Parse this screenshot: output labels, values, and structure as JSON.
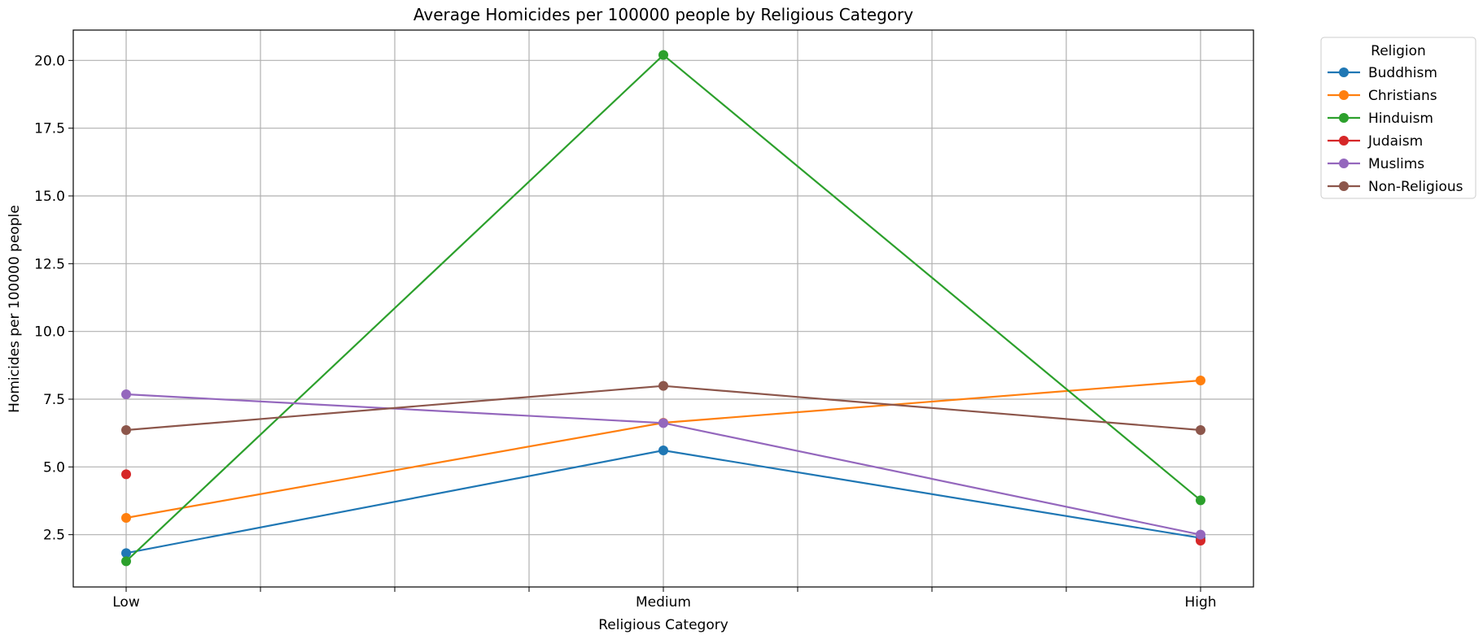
{
  "chart_data": {
    "type": "line",
    "title": "Average Homicides per 100000 people by Religious Category",
    "xlabel": "Religious Category",
    "ylabel": "Homicides per 100000 people",
    "categories": [
      "Low",
      "Medium",
      "High"
    ],
    "ylim": [
      0.57,
      21.12
    ],
    "yticks": [
      2.5,
      5.0,
      7.5,
      10.0,
      12.5,
      15.0,
      17.5,
      20.0
    ],
    "ytick_labels": [
      "2.5",
      "5.0",
      "7.5",
      "10.0",
      "12.5",
      "15.0",
      "17.5",
      "20.0"
    ],
    "grid": true,
    "legend": {
      "title": "Religion",
      "placement": "outside-top-right"
    },
    "series": [
      {
        "name": "Buddhism",
        "color": "#1f77b4",
        "values": [
          1.82,
          5.61,
          2.38
        ]
      },
      {
        "name": "Christians",
        "color": "#ff7f0e",
        "values": [
          3.12,
          6.63,
          8.19
        ]
      },
      {
        "name": "Hinduism",
        "color": "#2ca02c",
        "values": [
          1.52,
          20.2,
          3.77
        ]
      },
      {
        "name": "Judaism",
        "color": "#d62728",
        "values": [
          4.73,
          null,
          2.28
        ]
      },
      {
        "name": "Muslims",
        "color": "#9467bd",
        "values": [
          7.68,
          6.62,
          2.5
        ]
      },
      {
        "name": "Non-Religious",
        "color": "#8c564b",
        "values": [
          6.36,
          7.99,
          6.36
        ]
      }
    ]
  }
}
